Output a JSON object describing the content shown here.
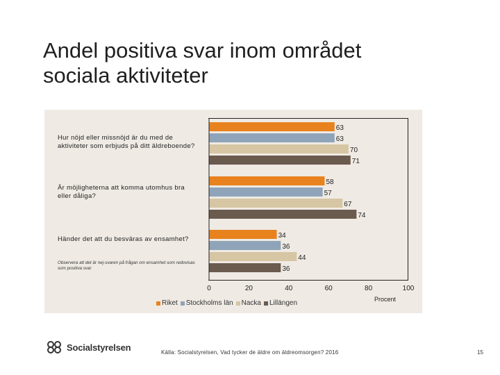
{
  "slide": {
    "title_line1": "Andel positiva svar inom området",
    "title_line2": "sociala aktiviteter",
    "source": "Källa: Socialstyrelsen, Vad tycker de äldre om äldreomsorgen? 2016",
    "page_number": "15",
    "logo_text": "Socialstyrelsen"
  },
  "chart_data": {
    "type": "bar",
    "orientation": "horizontal",
    "categories": [
      "Hur nöjd eller missnöjd är du med de aktiviteter som erbjuds på ditt äldreboende?",
      "Är möjligheterna att komma utomhus bra eller dåliga?",
      "Händer det att du besväras av ensamhet?"
    ],
    "category_note": "Observera att det är nej-svaren på frågan om ensamhet som redovisas som positiva svar",
    "series": [
      {
        "name": "Riket",
        "values": [
          63,
          58,
          34
        ],
        "color": "#e8821e"
      },
      {
        "name": "Stockholms län",
        "values": [
          63,
          57,
          36
        ],
        "color": "#8fa4b8"
      },
      {
        "name": "Nacka",
        "values": [
          70,
          67,
          44
        ],
        "color": "#d6c6a3"
      },
      {
        "name": "Lillängen",
        "values": [
          71,
          74,
          36
        ],
        "color": "#6b5a4e"
      }
    ],
    "x_ticks": [
      "0",
      "20",
      "40",
      "60",
      "80",
      "100"
    ],
    "xlim": [
      0,
      100
    ],
    "xlabel": "Procent",
    "legend_position": "bottom",
    "grid": false
  }
}
